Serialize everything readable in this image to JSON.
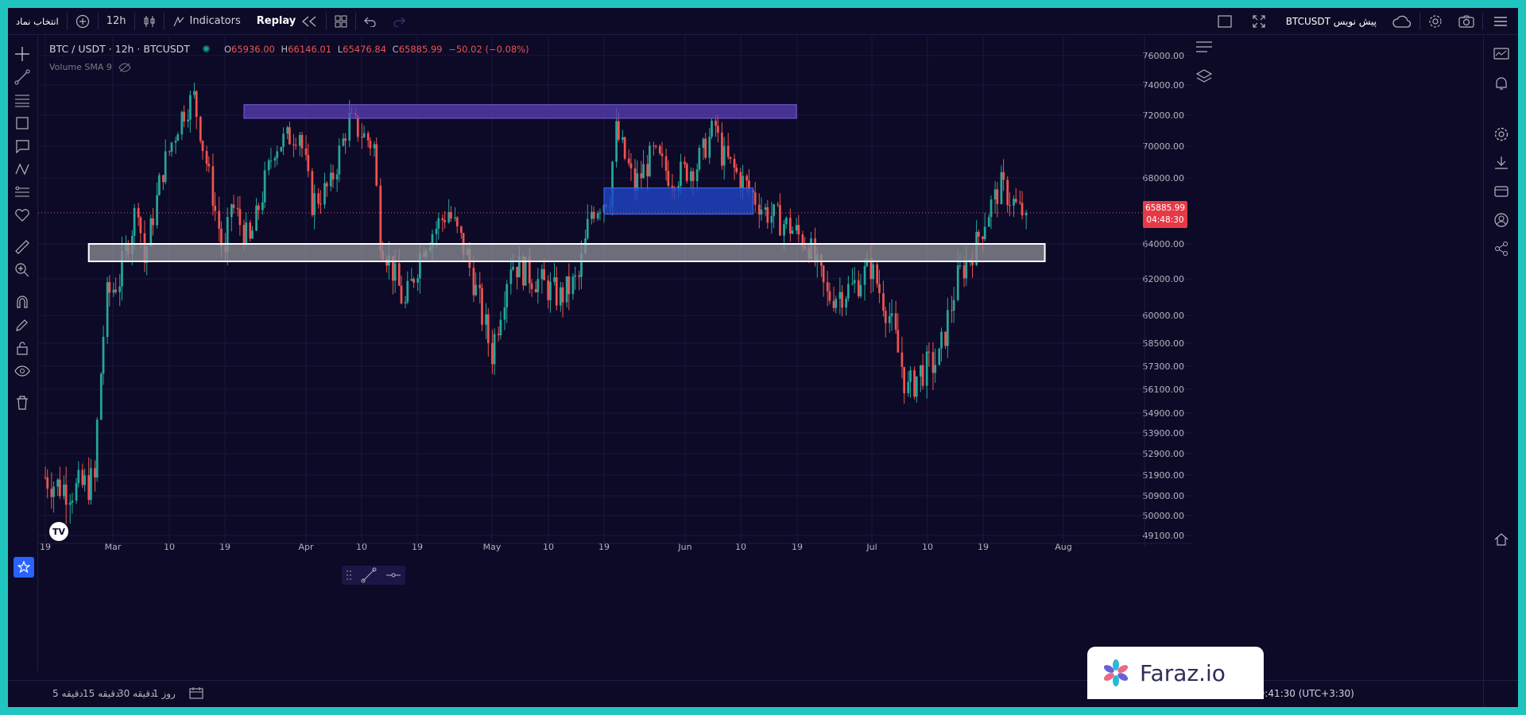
{
  "toolbar": {
    "symbol_search": "انتخاب نماد",
    "interval": "12h",
    "indicators": "Indicators",
    "replay": "Replay",
    "symbol_preview": "BTCUSDT پیش نویس"
  },
  "legend": {
    "symbol": "BTC / USDT · 12h · BTCUSDT",
    "open_label": "O",
    "open": "65936.00",
    "high_label": "H",
    "high": "66146.01",
    "low_label": "L",
    "low": "65476.84",
    "close_label": "C",
    "close": "65885.99",
    "change": "−50.02 (−0.08%)",
    "volume_indicator": "Volume SMA 9"
  },
  "last_price": {
    "price": "65885.99",
    "countdown": "04:48:30"
  },
  "bottom": {
    "timeframes": [
      "5 دقیقه",
      "15 دقیقه",
      "30 دقیقه",
      "1 روز"
    ],
    "clock": "10:41:30 (UTC+3:30)"
  },
  "watermark": "Faraz.io",
  "colors": {
    "up": "#26a69a",
    "down": "#ef5350",
    "bg": "#0c0a26",
    "purple_zone": "#5b3fb8",
    "blue_zone": "#1f46c8",
    "grey_zone": "#8a8a94"
  },
  "chart_data": {
    "type": "candlestick",
    "y_ticks": [
      76000,
      74000,
      72000,
      70000,
      68000,
      64000,
      62000,
      60000,
      58500,
      57300,
      56100,
      54900,
      53900,
      52900,
      51900,
      50900,
      50000,
      49100
    ],
    "y_tick_labels": [
      "76000.00",
      "74000.00",
      "72000.00",
      "70000.00",
      "68000.00",
      "64000.00",
      "62000.00",
      "60000.00",
      "58500.00",
      "57300.00",
      "56100.00",
      "54900.00",
      "53900.00",
      "52900.00",
      "51900.00",
      "50900.00",
      "50000.00",
      "49100.00"
    ],
    "x_tick_labels": [
      "19",
      "Mar",
      "10",
      "19",
      "Apr",
      "10",
      "19",
      "May",
      "10",
      "19",
      "Jun",
      "10",
      "19",
      "Jul",
      "10",
      "19",
      "Aug"
    ],
    "x_tick_dates": [
      "2024-02-19",
      "2024-03-01",
      "2024-03-10",
      "2024-03-19",
      "2024-04-01",
      "2024-04-10",
      "2024-04-19",
      "2024-05-01",
      "2024-05-10",
      "2024-05-19",
      "2024-06-01",
      "2024-06-10",
      "2024-06-19",
      "2024-07-01",
      "2024-07-10",
      "2024-07-19",
      "2024-08-01"
    ],
    "price_path": [
      [
        "2024-02-19",
        51800
      ],
      [
        "2024-02-21",
        51400
      ],
      [
        "2024-02-24",
        51200
      ],
      [
        "2024-02-27",
        51600
      ],
      [
        "2024-02-28",
        57000
      ],
      [
        "2024-02-29",
        61000
      ],
      [
        "2024-03-02",
        62000
      ],
      [
        "2024-03-05",
        66500
      ],
      [
        "2024-03-06",
        63000
      ],
      [
        "2024-03-09",
        68500
      ],
      [
        "2024-03-12",
        72000
      ],
      [
        "2024-03-14",
        73200
      ],
      [
        "2024-03-16",
        69000
      ],
      [
        "2024-03-19",
        63000
      ],
      [
        "2024-03-20",
        66500
      ],
      [
        "2024-03-23",
        64000
      ],
      [
        "2024-03-27",
        70000
      ],
      [
        "2024-03-31",
        71000
      ],
      [
        "2024-04-02",
        66500
      ],
      [
        "2024-04-05",
        67500
      ],
      [
        "2024-04-08",
        71700
      ],
      [
        "2024-04-12",
        70000
      ],
      [
        "2024-04-13",
        64500
      ],
      [
        "2024-04-17",
        60500
      ],
      [
        "2024-04-20",
        64000
      ],
      [
        "2024-04-24",
        66000
      ],
      [
        "2024-04-27",
        63300
      ],
      [
        "2024-05-01",
        58000
      ],
      [
        "2024-05-04",
        63000
      ],
      [
        "2024-05-08",
        62000
      ],
      [
        "2024-05-12",
        61000
      ],
      [
        "2024-05-15",
        62000
      ],
      [
        "2024-05-17",
        66000
      ],
      [
        "2024-05-20",
        67000
      ],
      [
        "2024-05-21",
        71000
      ],
      [
        "2024-05-24",
        67500
      ],
      [
        "2024-05-27",
        69500
      ],
      [
        "2024-05-30",
        68000
      ],
      [
        "2024-06-03",
        68800
      ],
      [
        "2024-06-06",
        71300
      ],
      [
        "2024-06-07",
        69500
      ],
      [
        "2024-06-11",
        67500
      ],
      [
        "2024-06-14",
        66000
      ],
      [
        "2024-06-18",
        65000
      ],
      [
        "2024-06-21",
        64000
      ],
      [
        "2024-06-24",
        61000
      ],
      [
        "2024-06-28",
        61500
      ],
      [
        "2024-07-01",
        62700
      ],
      [
        "2024-07-04",
        60000
      ],
      [
        "2024-07-07",
        56000
      ],
      [
        "2024-07-09",
        57000
      ],
      [
        "2024-07-12",
        57600
      ],
      [
        "2024-07-15",
        62000
      ],
      [
        "2024-07-18",
        64000
      ],
      [
        "2024-07-20",
        66000
      ],
      [
        "2024-07-22",
        67500
      ],
      [
        "2024-07-25",
        66000
      ],
      [
        "2024-07-26",
        65886
      ]
    ],
    "zones": [
      {
        "name": "purple-resistance",
        "from": "2024-03-22",
        "to": "2024-06-19",
        "top": 72700,
        "bottom": 71800
      },
      {
        "name": "blue-zone",
        "from": "2024-05-19",
        "to": "2024-06-12",
        "top": 67400,
        "bottom": 65800
      },
      {
        "name": "grey-support",
        "from": "2024-02-26",
        "to": "2024-07-29",
        "top": 64000,
        "bottom": 63000
      }
    ],
    "last_price": 65885.99
  }
}
